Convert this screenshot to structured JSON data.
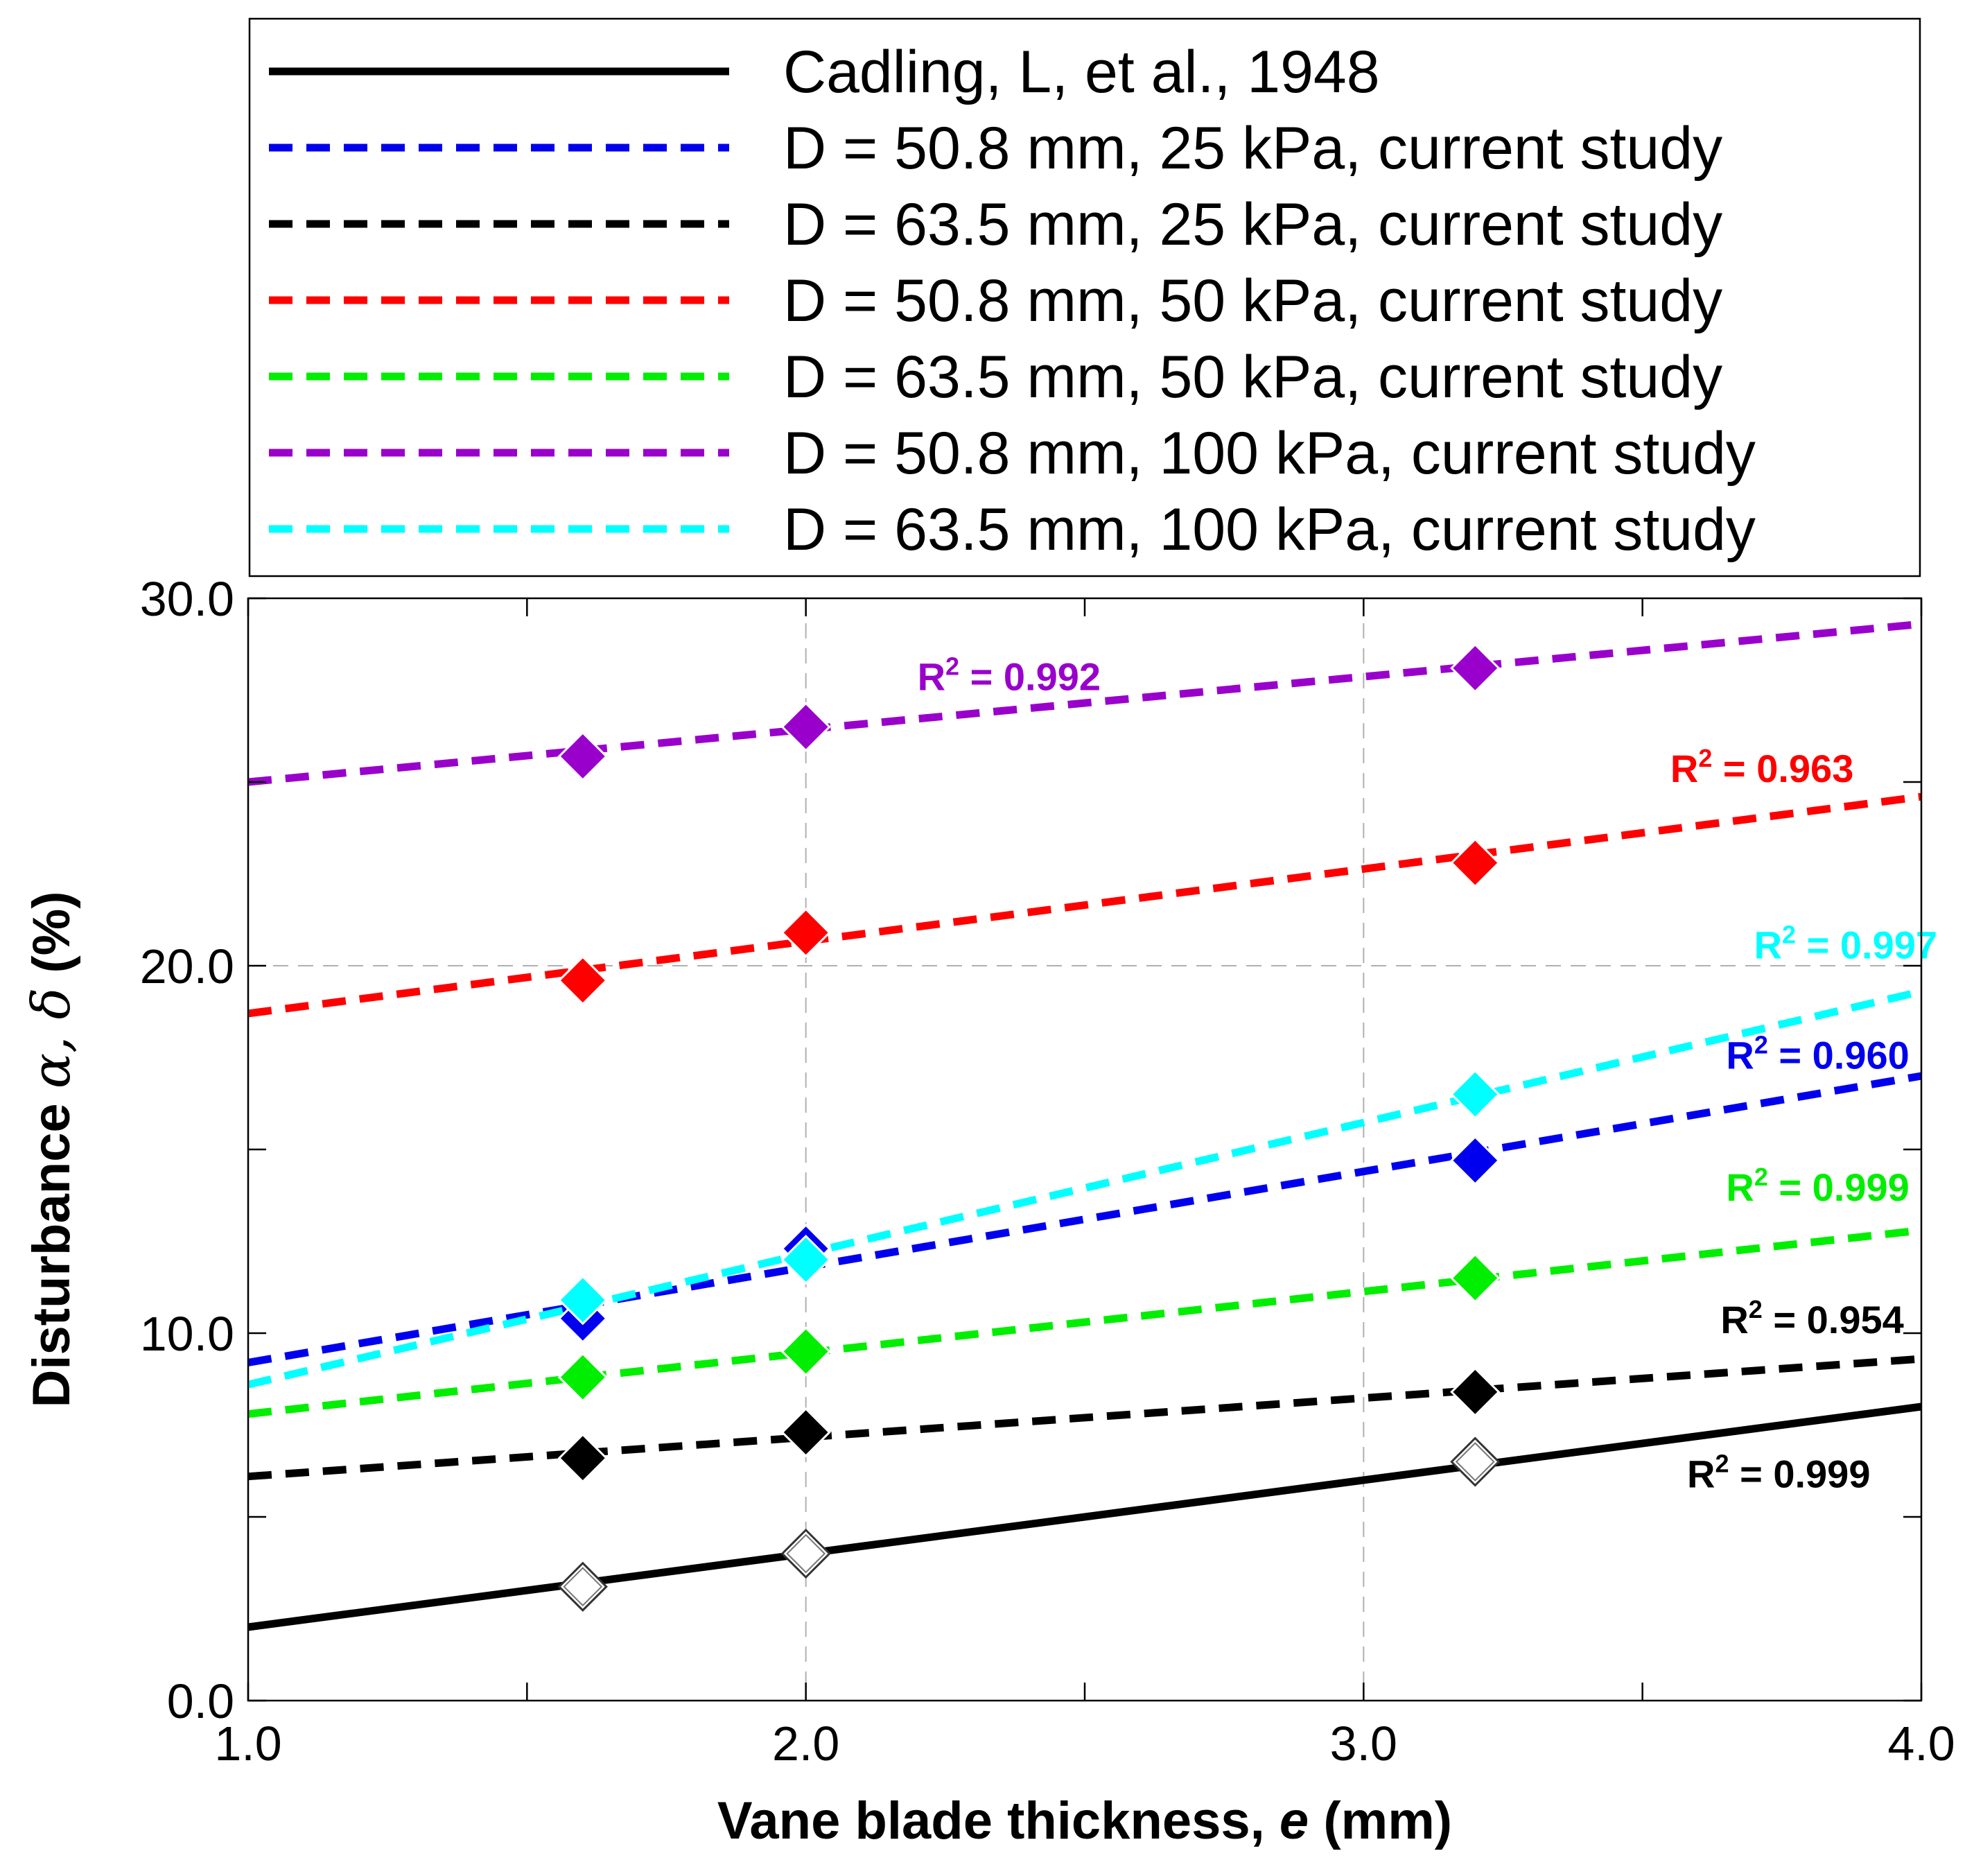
{
  "chart_data": {
    "type": "scatter",
    "xlabel_main": "Vane blade thickness, ",
    "xlabel_var": "e",
    "xlabel_unit": " (mm)",
    "ylabel_main": "Disturbance ",
    "ylabel_sym": "α, δ",
    "ylabel_unit": " (%)",
    "xlim": [
      1.0,
      4.0
    ],
    "ylim": [
      0.0,
      30.0
    ],
    "x_ticks": [
      {
        "v": 1.0,
        "label": "1.0"
      },
      {
        "v": 2.0,
        "label": "2.0"
      },
      {
        "v": 3.0,
        "label": "3.0"
      },
      {
        "v": 4.0,
        "label": "4.0"
      }
    ],
    "y_ticks": [
      {
        "v": 0,
        "label": "0.0"
      },
      {
        "v": 10,
        "label": "10.0"
      },
      {
        "v": 20,
        "label": "20.0"
      },
      {
        "v": 30,
        "label": "30.0"
      }
    ],
    "x_minor_ticks": [
      1.5,
      2.5,
      3.5
    ],
    "y_minor_ticks": [
      5,
      15,
      25
    ],
    "grid": "dashed at major x ticks (2.0, 3.0) and y = 20.0",
    "legend_placement": "above plot",
    "series": [
      {
        "name": "Cadling, L, et al., 1948",
        "color": "#000000",
        "dash": false,
        "hollow": true,
        "x": [
          1.6,
          2.0,
          3.2
        ],
        "y": [
          3.1,
          4.0,
          6.5
        ],
        "fit": [
          [
            1.0,
            2.0
          ],
          [
            4.0,
            8.0
          ]
        ],
        "r2": {
          "pre": "R",
          "sup": "2",
          "post": " = 0.999",
          "x": 3.58,
          "y": 5.8
        }
      },
      {
        "name": "D = 50.8 mm, 25 kPa, current study",
        "color": "#0000ee",
        "dash": true,
        "hollow": false,
        "x": [
          1.6,
          2.0,
          3.2
        ],
        "y": [
          10.4,
          12.3,
          14.7
        ],
        "fit": [
          [
            1.0,
            9.2
          ],
          [
            4.0,
            17.0
          ]
        ],
        "r2": {
          "pre": "R",
          "sup": "2",
          "post": " = 0.960",
          "x": 3.65,
          "y": 17.2
        }
      },
      {
        "name": "D = 63.5 mm, 25 kPa, current study",
        "color": "#000000",
        "dash": true,
        "hollow": false,
        "x": [
          1.6,
          2.0,
          3.2
        ],
        "y": [
          6.6,
          7.3,
          8.4
        ],
        "fit": [
          [
            1.0,
            6.1
          ],
          [
            4.0,
            9.3
          ]
        ],
        "r2": {
          "pre": "R",
          "sup": "2",
          "post": " = 0.954",
          "x": 3.64,
          "y": 10.0
        }
      },
      {
        "name": "D = 50.8 mm, 50 kPa, current study",
        "color": "#ff0000",
        "dash": true,
        "hollow": false,
        "x": [
          1.6,
          2.0,
          3.2
        ],
        "y": [
          19.6,
          20.9,
          22.8
        ],
        "fit": [
          [
            1.0,
            18.7
          ],
          [
            4.0,
            24.6
          ]
        ],
        "r2": {
          "pre": "R",
          "sup": "2",
          "post": " = 0.963",
          "x": 3.55,
          "y": 25.0
        }
      },
      {
        "name": "D = 63.5 mm, 50 kPa, current study",
        "color": "#00ee00",
        "dash": true,
        "hollow": false,
        "x": [
          1.6,
          2.0,
          3.2
        ],
        "y": [
          8.8,
          9.5,
          11.5
        ],
        "fit": [
          [
            1.0,
            7.8
          ],
          [
            4.0,
            12.8
          ]
        ],
        "r2": {
          "pre": "R",
          "sup": "2",
          "post": " = 0.999",
          "x": 3.65,
          "y": 13.6
        }
      },
      {
        "name": "D = 50.8 mm, 100 kPa, current study",
        "color": "#9900cc",
        "dash": true,
        "hollow": false,
        "x": [
          1.6,
          2.0,
          3.2
        ],
        "y": [
          25.7,
          26.5,
          28.1
        ],
        "fit": [
          [
            1.0,
            25.0
          ],
          [
            4.0,
            29.3
          ]
        ],
        "r2": {
          "pre": "R",
          "sup": "2",
          "post": " = 0.992",
          "x": 2.2,
          "y": 27.5
        }
      },
      {
        "name": "D = 63.5 mm, 100 kPa, current study",
        "color": "#00ffff",
        "dash": true,
        "hollow": false,
        "x": [
          1.6,
          2.0,
          3.2
        ],
        "y": [
          10.9,
          12.0,
          16.5
        ],
        "fit": [
          [
            1.0,
            8.6
          ],
          [
            4.0,
            19.3
          ]
        ],
        "r2": {
          "pre": "R",
          "sup": "2",
          "post": " = 0.997",
          "x": 3.7,
          "y": 20.2
        }
      }
    ]
  }
}
